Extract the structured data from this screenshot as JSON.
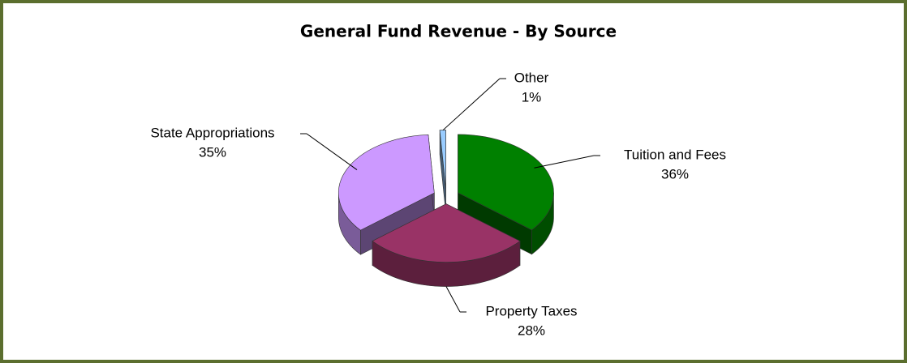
{
  "chart_data": {
    "type": "pie",
    "title": "General Fund Revenue - By Source",
    "categories": [
      "Tuition and Fees",
      "Property Taxes",
      "State Appropriations",
      "Other"
    ],
    "values": [
      36,
      28,
      35,
      1
    ],
    "value_labels": [
      "36%",
      "28%",
      "35%",
      "1%"
    ],
    "colors": [
      "#008000",
      "#993366",
      "#cc99ff",
      "#99ccff"
    ]
  }
}
